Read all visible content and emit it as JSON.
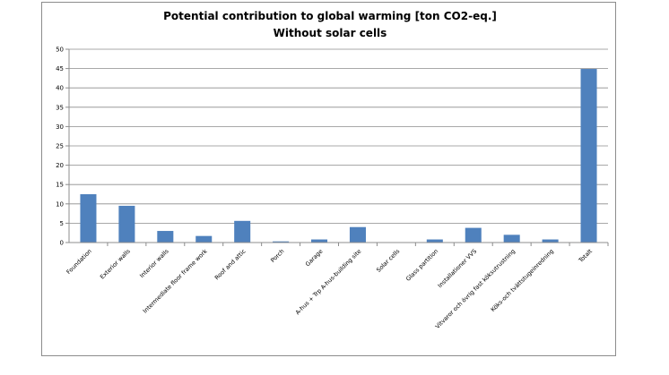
{
  "chart_data": {
    "type": "bar",
    "title_line1": "Potential contribution to global warming [ton CO2-eq.]",
    "title_line2": "Without solar cells",
    "xlabel": "",
    "ylabel": "",
    "ylim": [
      0,
      50
    ],
    "yticks": [
      0,
      5,
      10,
      15,
      20,
      25,
      30,
      35,
      40,
      45,
      50
    ],
    "grid": true,
    "legend": "none",
    "bar_color": "#4f81bd",
    "categories": [
      "Foundation",
      "Exterior walls",
      "Interior walls",
      "Intermediate floor frame work",
      "Roof and attic",
      "Porch",
      "Garage",
      "A-hus + Trp A-hus-building site",
      "Solar cells",
      "Glass partition",
      "Installationer VVS",
      "Vitvaror och övrig fast köksutrustning",
      "Köks-och tvättstugeinredning",
      "Totalt"
    ],
    "values": [
      12.5,
      9.5,
      3.0,
      1.7,
      5.6,
      0.3,
      0.8,
      4.0,
      0.0,
      0.8,
      3.8,
      2.0,
      0.8,
      44.9
    ]
  }
}
